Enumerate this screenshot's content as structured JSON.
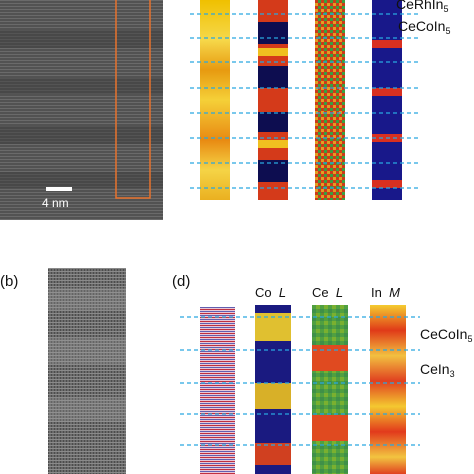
{
  "panel_labels": {
    "b": "(b)",
    "d": "(d)"
  },
  "scale_bar": {
    "text": "4 nm"
  },
  "top_right": {
    "label_top": {
      "base": "CeRhIn",
      "sub": "5"
    },
    "label_mid": {
      "base": "CeCoIn",
      "sub": "5"
    }
  },
  "bottom_right": {
    "headers": [
      {
        "el": "Co",
        "line": "L"
      },
      {
        "el": "Ce",
        "line": "L"
      },
      {
        "el": "In",
        "line": "M"
      }
    ],
    "label_1": {
      "base": "CeCoIn",
      "sub": "5"
    },
    "label_2": {
      "base": "CeIn",
      "sub": "3"
    }
  },
  "colors": {
    "dashed_line": "#29a8e0",
    "roi_box": "#e8732c",
    "stem_bg": "#4f4f4f"
  }
}
